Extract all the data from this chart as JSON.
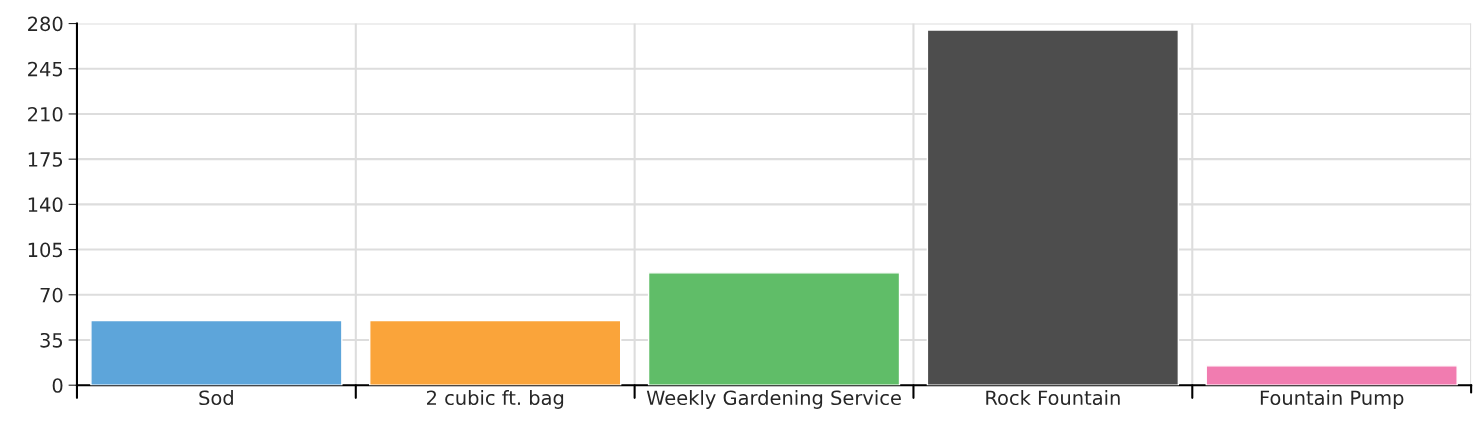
{
  "chart_data": {
    "type": "bar",
    "categories": [
      "Sod",
      "2 cubic ft. bag",
      "Weekly Gardening Service",
      "Rock Fountain",
      "Fountain Pump"
    ],
    "values": [
      50,
      50,
      87,
      275,
      15
    ],
    "colors": [
      "#5da5da",
      "#faa43a",
      "#60bd68",
      "#4d4d4d",
      "#f17cb0"
    ],
    "ylim": [
      0,
      280
    ],
    "yticks": [
      0,
      35,
      70,
      105,
      140,
      175,
      210,
      245,
      280
    ],
    "grid": true
  }
}
